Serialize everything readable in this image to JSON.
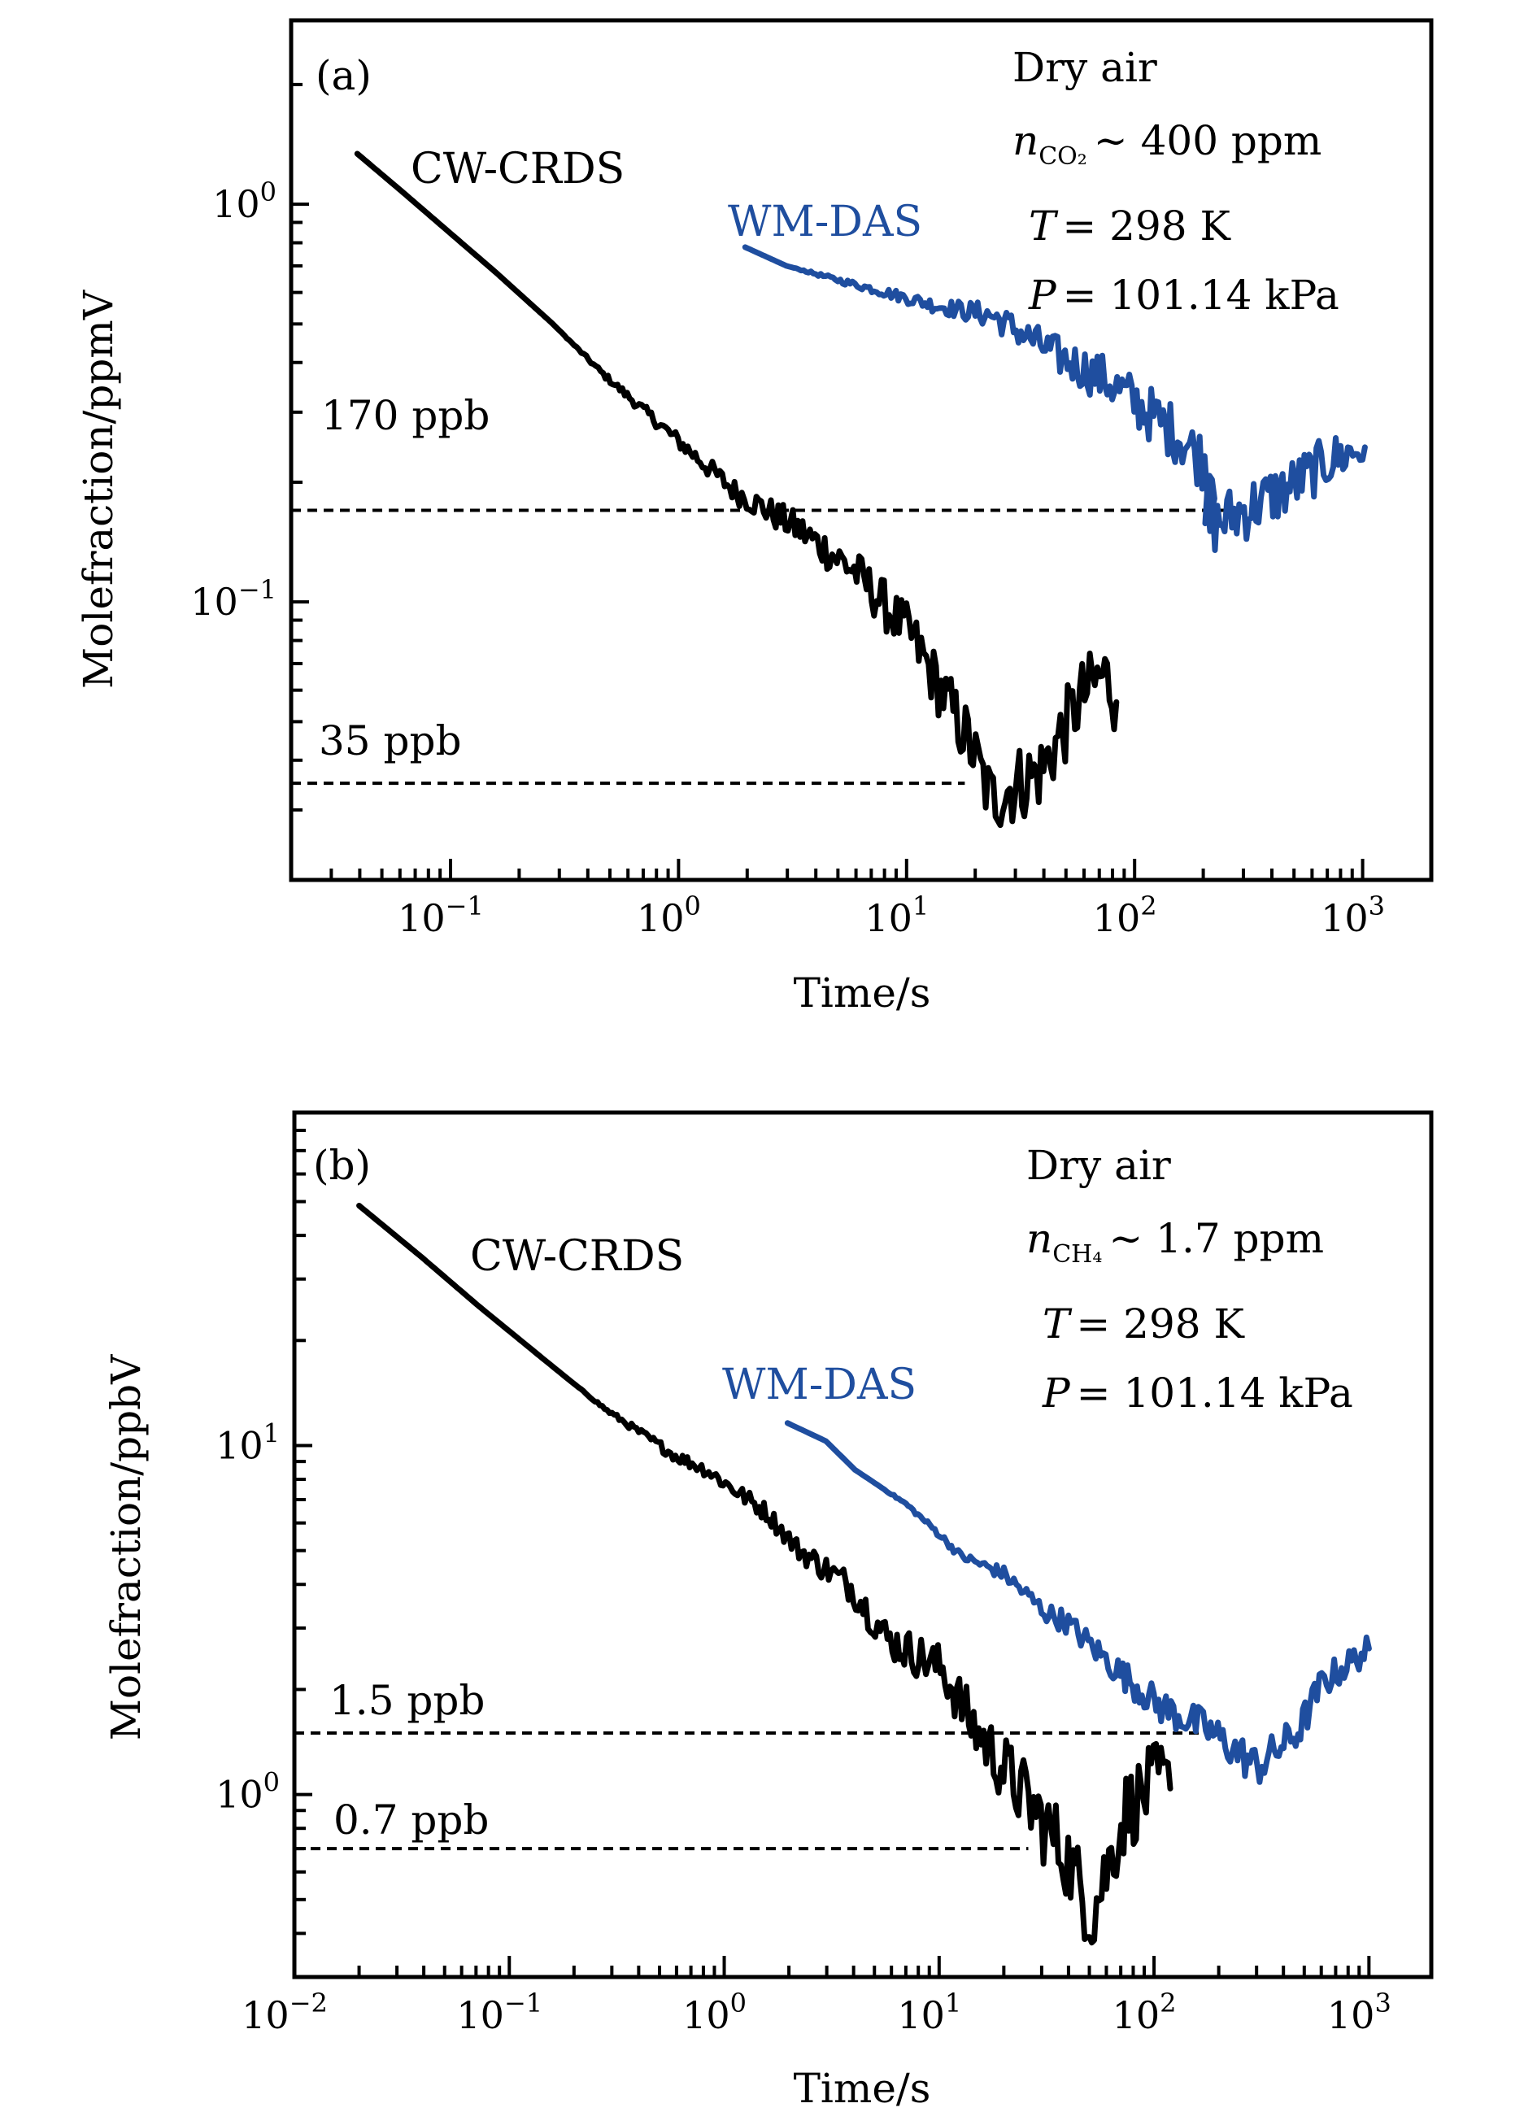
{
  "chart_data": [
    {
      "panel": "(a)",
      "type": "line",
      "xscale": "log",
      "yscale": "log",
      "xlabel": "Time/s",
      "ylabel": "Molefraction/ppmV",
      "xlim": [
        0.02,
        2000
      ],
      "ylim": [
        0.02,
        2.9
      ],
      "x_ticks": [
        {
          "exp": "−1",
          "value": 0.1
        },
        {
          "exp": "0",
          "value": 1
        },
        {
          "exp": "1",
          "value": 10
        },
        {
          "exp": "2",
          "value": 100
        },
        {
          "exp": "3",
          "value": 1000
        }
      ],
      "y_ticks": [
        {
          "exp": "0",
          "value": 1
        },
        {
          "exp": "−1",
          "value": 0.1
        }
      ],
      "tick_base": "10",
      "grid": false,
      "annotations": {
        "conditions": {
          "line1": "Dry air",
          "species_var": "n",
          "species_sub": "CO₂",
          "species_value": "∼ 400 ppm",
          "temp_var": "T",
          "temp_value": "= 298 K",
          "pressure_var": "P",
          "pressure_value": "= 101.14 kPa"
        }
      },
      "reference_lines": [
        {
          "label": "170 ppb",
          "value": 0.17,
          "x_end": 300
        },
        {
          "label": "35 ppb",
          "value": 0.035,
          "x_end": 18
        }
      ],
      "series": [
        {
          "name": "CW-CRDS",
          "color": "#000000",
          "noise_decades": [
            [
              0.3,
              0.0
            ],
            [
              1.0,
              0.02
            ],
            [
              3,
              0.04
            ],
            [
              10,
              0.07
            ],
            [
              30,
              0.1
            ],
            [
              100,
              0.09
            ]
          ],
          "points": [
            [
              0.039,
              1.34
            ],
            [
              0.062,
              1.07
            ],
            [
              0.157,
              0.676
            ],
            [
              0.279,
              0.502
            ],
            [
              0.467,
              0.374
            ],
            [
              0.836,
              0.278
            ],
            [
              1.76,
              0.19
            ],
            [
              3.33,
              0.153
            ],
            [
              5.89,
              0.12
            ],
            [
              10.5,
              0.082
            ],
            [
              18.6,
              0.045
            ],
            [
              23.4,
              0.032
            ],
            [
              38.9,
              0.0376
            ],
            [
              58.9,
              0.058
            ],
            [
              74.1,
              0.066
            ],
            [
              83.2,
              0.056
            ]
          ]
        },
        {
          "name": "WM-DAS",
          "color": "#1f4e9f",
          "noise_decades": [
            [
              3,
              0.0
            ],
            [
              15,
              0.02
            ],
            [
              30,
              0.04
            ],
            [
              100,
              0.07
            ],
            [
              300,
              0.08
            ],
            [
              1000,
              0.06
            ]
          ],
          "points": [
            [
              1.96,
              0.78
            ],
            [
              2.97,
              0.7
            ],
            [
              5.25,
              0.64
            ],
            [
              8.77,
              0.593
            ],
            [
              13.6,
              0.555
            ],
            [
              23.7,
              0.525
            ],
            [
              30.2,
              0.484
            ],
            [
              43.7,
              0.423
            ],
            [
              75.9,
              0.36
            ],
            [
              110,
              0.305
            ],
            [
              158,
              0.26
            ],
            [
              224,
              0.212
            ],
            [
              204,
              0.153
            ],
            [
              302,
              0.17
            ],
            [
              468,
              0.193
            ],
            [
              708,
              0.226
            ],
            [
              1023,
              0.245
            ]
          ]
        }
      ]
    },
    {
      "panel": "(b)",
      "type": "line",
      "xscale": "log",
      "yscale": "log",
      "xlabel": "Time/s",
      "ylabel": "Molefraction/ppbV",
      "xlim": [
        0.01,
        1950
      ],
      "ylim": [
        0.3,
        90
      ],
      "x_ticks": [
        {
          "exp": "−2",
          "value": 0.01
        },
        {
          "exp": "−1",
          "value": 0.1
        },
        {
          "exp": "0",
          "value": 1
        },
        {
          "exp": "1",
          "value": 10
        },
        {
          "exp": "2",
          "value": 100
        },
        {
          "exp": "3",
          "value": 1000
        }
      ],
      "y_ticks": [
        {
          "exp": "1",
          "value": 10
        },
        {
          "exp": "0",
          "value": 1
        }
      ],
      "tick_base": "10",
      "grid": false,
      "annotations": {
        "conditions": {
          "line1": "Dry air",
          "species_var": "n",
          "species_sub": "CH₄",
          "species_value": "∼ 1.7 ppm",
          "temp_var": "T",
          "temp_value": "= 298 K",
          "pressure_var": "P",
          "pressure_value": "= 101.14 kPa"
        }
      },
      "reference_lines": [
        {
          "label": "1.5 ppb",
          "value": 1.5,
          "x_end": 213
        },
        {
          "label": "0.7 ppb",
          "value": 0.7,
          "x_end": 26
        }
      ],
      "series": [
        {
          "name": "CW-CRDS",
          "color": "#000000",
          "noise_decades": [
            [
              0.2,
              0.0
            ],
            [
              0.5,
              0.015
            ],
            [
              2,
              0.03
            ],
            [
              10,
              0.07
            ],
            [
              30,
              0.12
            ],
            [
              120,
              0.12
            ]
          ],
          "points": [
            [
              0.02,
              48.7
            ],
            [
              0.039,
              34.7
            ],
            [
              0.072,
              25.1
            ],
            [
              0.158,
              16.9
            ],
            [
              0.285,
              12.6
            ],
            [
              0.593,
              9.33
            ],
            [
              0.826,
              8.51
            ],
            [
              1.57,
              6.44
            ],
            [
              2.17,
              5.09
            ],
            [
              3.89,
              3.94
            ],
            [
              5.75,
              2.79
            ],
            [
              10.4,
              2.28
            ],
            [
              14.1,
              1.6
            ],
            [
              23.4,
              1.04
            ],
            [
              38.9,
              0.67
            ],
            [
              51.3,
              0.45
            ],
            [
              74.1,
              0.9
            ],
            [
              105,
              1.1
            ],
            [
              119,
              1.04
            ]
          ]
        },
        {
          "name": "WM-DAS",
          "color": "#1f4e9f",
          "noise_decades": [
            [
              5,
              0.0
            ],
            [
              15,
              0.015
            ],
            [
              40,
              0.035
            ],
            [
              100,
              0.05
            ],
            [
              300,
              0.06
            ],
            [
              1000,
              0.04
            ]
          ],
          "points": [
            [
              1.97,
              11.6
            ],
            [
              2.97,
              10.3
            ],
            [
              4.07,
              8.51
            ],
            [
              7.0,
              6.81
            ],
            [
              9.55,
              5.73
            ],
            [
              12.6,
              4.83
            ],
            [
              20,
              4.29
            ],
            [
              31.6,
              3.31
            ],
            [
              38.9,
              3.13
            ],
            [
              64.6,
              2.33
            ],
            [
              105,
              1.8
            ],
            [
              174,
              1.55
            ],
            [
              302,
              1.2
            ],
            [
              468,
              1.51
            ],
            [
              603,
              2.08
            ],
            [
              1000,
              2.62
            ]
          ]
        }
      ]
    }
  ]
}
